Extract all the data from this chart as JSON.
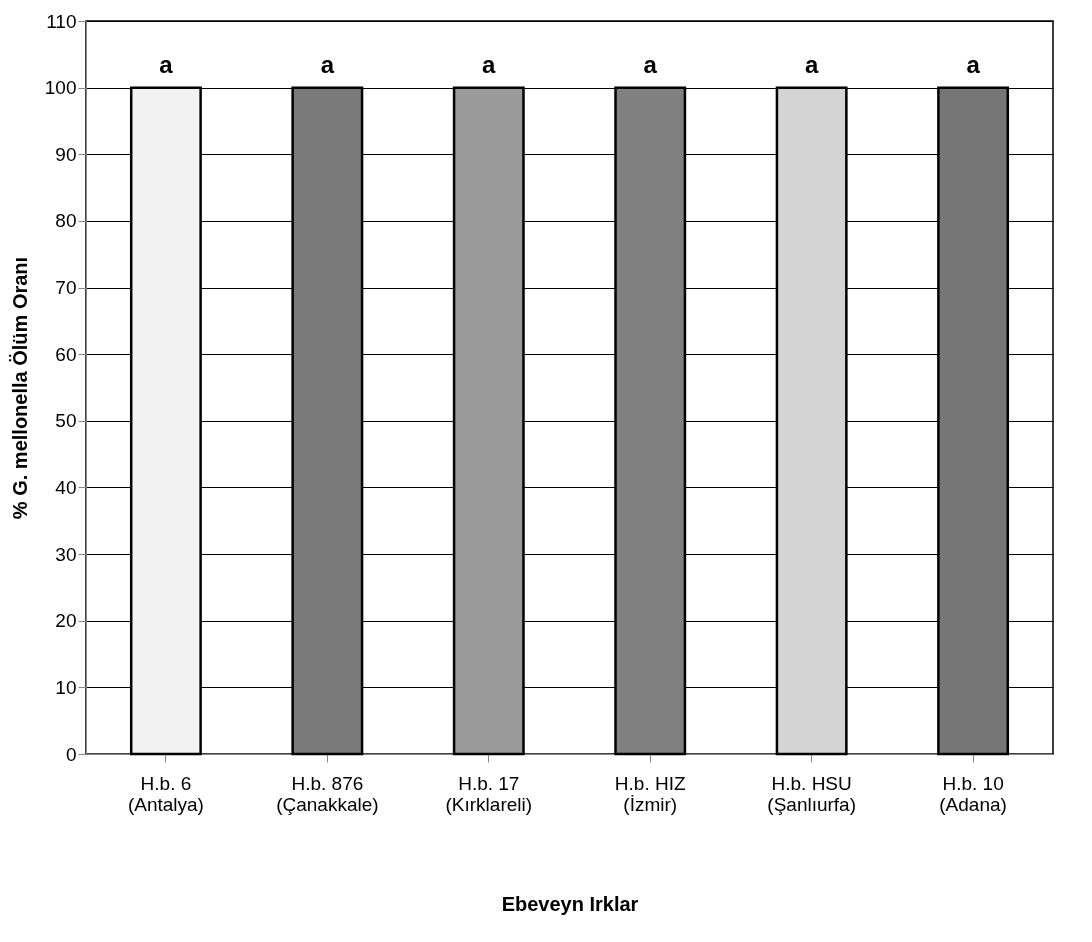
{
  "chart_data": {
    "type": "bar",
    "categories": [
      "H.b. 6\n(Antalya)",
      "H.b. 876\n(Çanakkale)",
      "H.b. 17\n(Kırklareli)",
      "H.b. HIZ\n(İzmir)",
      "H.b. HSU\n(Şanlıurfa)",
      "H.b. 10\n(Adana)"
    ],
    "values": [
      100,
      100,
      100,
      100,
      100,
      100
    ],
    "colors": [
      "#f2f2f2",
      "#7a7a7a",
      "#9a9a9a",
      "#808080",
      "#d4d4d4",
      "#767676"
    ],
    "xlabel": "Ebeveyn Irklar",
    "ylabel": "% G. mellonella Ölüm Oranı",
    "ylim": [
      0,
      110
    ],
    "yticks": [
      0,
      10,
      20,
      30,
      40,
      50,
      60,
      70,
      80,
      90,
      100,
      110
    ],
    "grid": "y",
    "annotations": [
      {
        "text": "a",
        "x": "H.b. 6\n(Antalya)",
        "y": 100
      },
      {
        "text": "a",
        "x": "H.b. 876\n(Çanakkale)",
        "y": 100
      },
      {
        "text": "a",
        "x": "H.b. 17\n(Kırklareli)",
        "y": 100
      },
      {
        "text": "a",
        "x": "H.b. HIZ\n(İzmir)",
        "y": 100
      },
      {
        "text": "a",
        "x": "H.b. HSU\n(Şanlıurfa)",
        "y": 100
      },
      {
        "text": "a",
        "x": "H.b. 10\n(Adana)",
        "y": 100
      }
    ]
  }
}
